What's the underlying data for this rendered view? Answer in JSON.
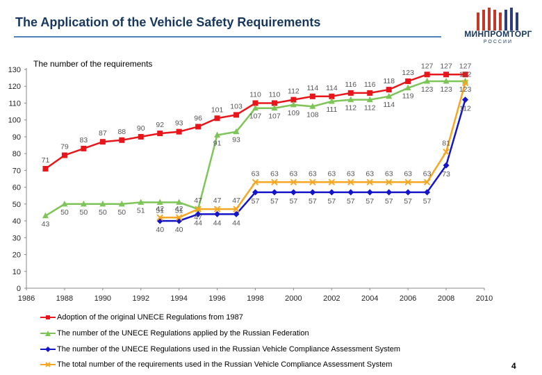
{
  "header": {
    "title": "The Application of the Vehicle Safety Requirements",
    "logo_text": "МИНПРОМТОРГ",
    "logo_sub": "РОССИИ"
  },
  "chart_data": {
    "type": "line",
    "title": "The number of the requirements",
    "xlim": [
      1986,
      2010
    ],
    "xticks": [
      1986,
      1988,
      1990,
      1992,
      1994,
      1996,
      1998,
      2000,
      2002,
      2004,
      2006,
      2008,
      2010
    ],
    "ylim": [
      0,
      130
    ],
    "yticks": [
      0,
      10,
      20,
      30,
      40,
      50,
      60,
      70,
      80,
      90,
      100,
      110,
      120,
      130
    ],
    "grid": false,
    "legend_position": "bottom",
    "series": [
      {
        "name": "Adoption of the original UNECE Regulations from 1987",
        "color": "#e8161b",
        "marker": "square",
        "x": [
          1987,
          1988,
          1989,
          1990,
          1991,
          1992,
          1993,
          1994,
          1995,
          1996,
          1997,
          1998,
          1999,
          2000,
          2001,
          2002,
          2003,
          2004,
          2005,
          2006,
          2007,
          2008,
          2009
        ],
        "values": [
          71,
          79,
          83,
          87,
          88,
          90,
          92,
          93,
          96,
          101,
          103,
          110,
          110,
          112,
          114,
          114,
          116,
          116,
          118,
          123,
          127,
          127,
          127
        ]
      },
      {
        "name": "The number of the UNECE Regulations applied by the Russian Federation",
        "color": "#7dc556",
        "marker": "triangle",
        "x": [
          1987,
          1988,
          1989,
          1990,
          1991,
          1992,
          1993,
          1994,
          1995,
          1996,
          1997,
          1998,
          1999,
          2000,
          2001,
          2002,
          2003,
          2004,
          2005,
          2006,
          2007,
          2008,
          2009
        ],
        "values": [
          43,
          50,
          50,
          50,
          50,
          51,
          51,
          51,
          47,
          91,
          93,
          107,
          107,
          109,
          108,
          111,
          112,
          112,
          114,
          119,
          123,
          123,
          123
        ]
      },
      {
        "name": "The number of the UNECE Regulations used in the Russian Vehicle Compliance Assessment System",
        "color": "#1414c8",
        "marker": "diamond",
        "x": [
          1993,
          1994,
          1995,
          1996,
          1997,
          1998,
          1999,
          2000,
          2001,
          2002,
          2003,
          2004,
          2005,
          2006,
          2007,
          2008,
          2009
        ],
        "values": [
          40,
          40,
          44,
          44,
          44,
          57,
          57,
          57,
          57,
          57,
          57,
          57,
          57,
          57,
          57,
          73,
          112
        ]
      },
      {
        "name": "The total number of the requirements used in the Russian Vehicle Compliance Assessment System",
        "color": "#f5a623",
        "marker": "x",
        "x": [
          1993,
          1994,
          1995,
          1996,
          1997,
          1998,
          1999,
          2000,
          2001,
          2002,
          2003,
          2004,
          2005,
          2006,
          2007,
          2008,
          2009
        ],
        "values": [
          42,
          42,
          47,
          47,
          47,
          63,
          63,
          63,
          63,
          63,
          63,
          63,
          63,
          63,
          63,
          81,
          122
        ]
      }
    ]
  },
  "footer": {
    "page_number": "4"
  }
}
